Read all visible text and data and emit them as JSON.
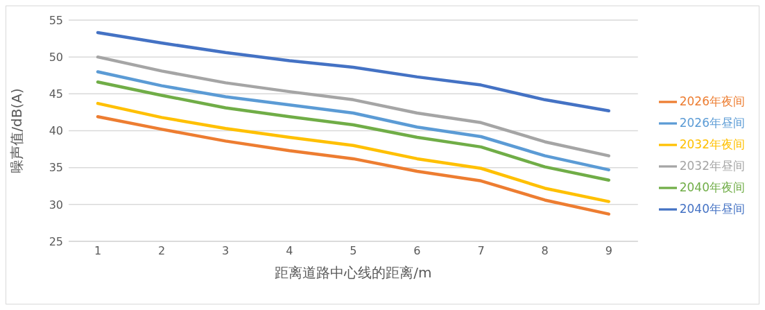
{
  "chart_data": {
    "type": "line",
    "xlabel": "距离道路中心线的距离/m",
    "ylabel": "噪声值/dB(A)",
    "categories": [
      "1",
      "2",
      "3",
      "4",
      "5",
      "6",
      "7",
      "8",
      "9"
    ],
    "ylim": [
      25,
      55
    ],
    "yticks": [
      25,
      30,
      35,
      40,
      45,
      50,
      55
    ],
    "grid": "y",
    "legend": "right",
    "marker": "none",
    "line_style": "solid",
    "series": [
      {
        "name": "2026年昼间",
        "color": "#5b9bd5",
        "values": [
          48.0,
          46.1,
          44.6,
          43.5,
          42.4,
          40.5,
          39.2,
          36.6,
          34.7
        ]
      },
      {
        "name": "2026年夜间",
        "color": "#ed7d31",
        "values": [
          41.9,
          40.2,
          38.6,
          37.3,
          36.2,
          34.5,
          33.2,
          30.6,
          28.7
        ]
      },
      {
        "name": "2032年昼间",
        "color": "#a5a5a5",
        "values": [
          50.0,
          48.1,
          46.5,
          45.3,
          44.2,
          42.4,
          41.1,
          38.5,
          36.6
        ]
      },
      {
        "name": "2032年夜间",
        "color": "#ffc000",
        "values": [
          43.7,
          41.8,
          40.3,
          39.1,
          38.0,
          36.2,
          34.9,
          32.2,
          30.4
        ]
      },
      {
        "name": "2040年昼间",
        "color": "#4472c4",
        "values": [
          53.3,
          51.9,
          50.6,
          49.5,
          48.6,
          47.3,
          46.2,
          44.2,
          42.7
        ]
      },
      {
        "name": "2040年夜间",
        "color": "#70ad47",
        "values": [
          46.6,
          44.8,
          43.1,
          41.9,
          40.8,
          39.1,
          37.8,
          35.1,
          33.3
        ]
      }
    ]
  }
}
